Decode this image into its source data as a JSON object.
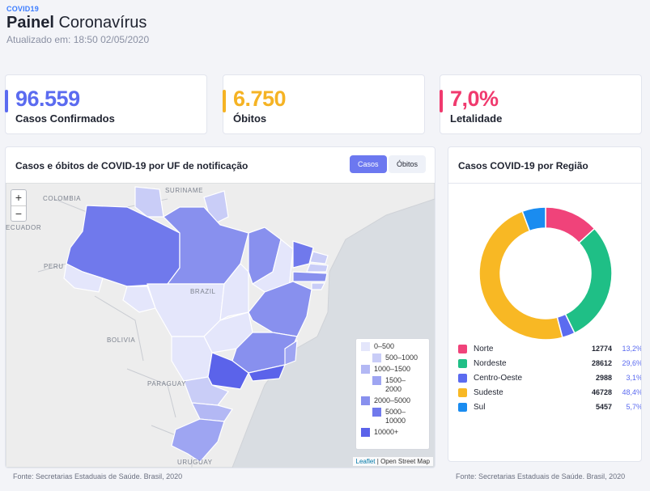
{
  "header": {
    "tag": "COVID19",
    "title_strong": "Painel",
    "title_rest": "Coronavírus",
    "updated": "Atualizado em: 18:50 02/05/2020"
  },
  "kpis": [
    {
      "value": "96.559",
      "label": "Casos Confirmados",
      "color": "#5b6bf0"
    },
    {
      "value": "6.750",
      "label": "Óbitos",
      "color": "#f5b324"
    },
    {
      "value": "7,0%",
      "label": "Letalidade",
      "color": "#f03a6e"
    }
  ],
  "map_panel": {
    "title": "Casos e óbitos de COVID-19 por UF de notificação",
    "toggle_cases": "Casos",
    "toggle_deaths": "Óbitos",
    "zoom_in": "+",
    "zoom_out": "−",
    "labels": {
      "colombia": "COLOMBIA",
      "suriname": "SURINAME",
      "ecuador": "ECUADOR",
      "peru": "PERU",
      "brazil": "BRAZIL",
      "bolivia": "BOLIVIA",
      "paraguay": "PARAGUAY",
      "uruguay": "URUGUAY"
    },
    "legend": [
      {
        "label": "0–500",
        "color": "#e4e6fb"
      },
      {
        "label": "500–1000",
        "color": "#c9cdf7"
      },
      {
        "label": "1000–1500",
        "color": "#b3b8f4"
      },
      {
        "label": "1500–2000",
        "color": "#9ea5f2"
      },
      {
        "label": "2000–5000",
        "color": "#8890ee"
      },
      {
        "label": "5000–10000",
        "color": "#7079ec"
      },
      {
        "label": "10000+",
        "color": "#5b63ea"
      }
    ],
    "attribution_leaflet": "Leaflet",
    "attribution_rest": "| Open Street Map",
    "footer": "Fonte: Secretarias Estaduais de Saúde. Brasil, 2020"
  },
  "region_panel": {
    "title": "Casos COVID-19 por Região",
    "footer": "Fonte: Secretarias Estaduais de Saúde. Brasil, 2020",
    "regions": [
      {
        "name": "Norte",
        "cases": "12774",
        "pct": "13,2%",
        "share": 13.2,
        "color": "#f0437a"
      },
      {
        "name": "Nordeste",
        "cases": "28612",
        "pct": "29,6%",
        "share": 29.6,
        "color": "#1fbf86"
      },
      {
        "name": "Centro-Oeste",
        "cases": "2988",
        "pct": "3,1%",
        "share": 3.1,
        "color": "#5b6bf0"
      },
      {
        "name": "Sudeste",
        "cases": "46728",
        "pct": "48,4%",
        "share": 48.4,
        "color": "#f8b824"
      },
      {
        "name": "Sul",
        "cases": "5457",
        "pct": "5,7%",
        "share": 5.7,
        "color": "#1a8cf0"
      }
    ]
  }
}
